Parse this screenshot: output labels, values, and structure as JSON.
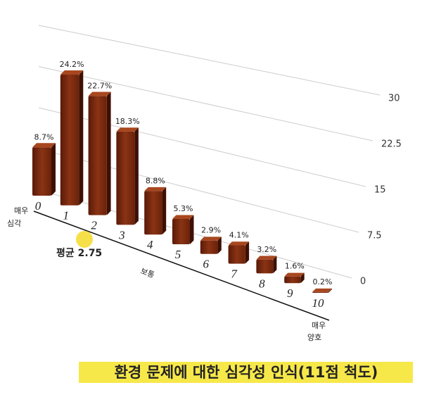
{
  "chart_data": {
    "type": "bar3d",
    "title": "환경 문제에 대한 심각성 인식(11점 척도)",
    "categories": [
      "0",
      "1",
      "2",
      "3",
      "4",
      "5",
      "6",
      "7",
      "8",
      "9",
      "10"
    ],
    "values": [
      8.7,
      24.2,
      22.7,
      18.3,
      8.8,
      5.3,
      2.9,
      4.1,
      3.2,
      1.6,
      0.2
    ],
    "value_labels": [
      "8.7%",
      "24.2%",
      "22.7%",
      "18.3%",
      "8.8%",
      "5.3%",
      "2.9%",
      "4.1%",
      "3.2%",
      "1.6%",
      "0.2%"
    ],
    "color": "#7a2a10",
    "ylim": [
      0,
      30
    ],
    "yticks": [
      0,
      7.5,
      15,
      22.5,
      30
    ],
    "grid": true
  },
  "annotations": [
    "매우",
    "심각",
    "평균 2.75",
    "보통",
    "매우",
    "양호"
  ]
}
